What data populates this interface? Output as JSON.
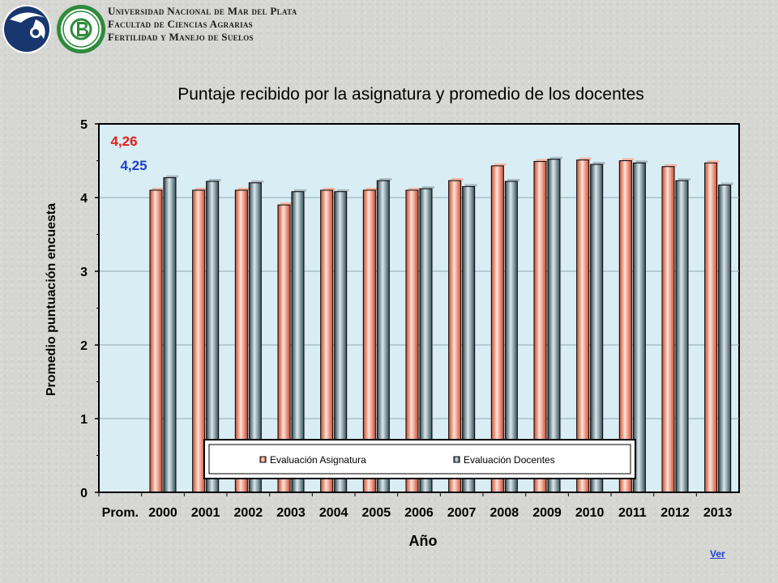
{
  "header": {
    "line1": "Universidad Nacional de Mar del Plata",
    "line2": "Facultad de Ciencias Agrarias",
    "line3": "Fertilidad y Manejo de Suelos"
  },
  "footer": {
    "link_label": "Ver"
  },
  "colors": {
    "series_asignatura": "#e8553a",
    "series_docentes": "#3d5a66",
    "plot_bg": "#d9edf5",
    "highlight_asignatura": "#e0201b",
    "highlight_docentes": "#1f3fc4"
  },
  "chart_data": {
    "type": "bar",
    "title": "Puntaje recibido por la asignatura y promedio de los docentes",
    "xlabel": "Año",
    "ylabel": "Promedio puntuación encuesta",
    "ylim": [
      0,
      5
    ],
    "yticks": [
      "0",
      "1",
      "2",
      "3",
      "4",
      "5"
    ],
    "grid": true,
    "legend_position": "bottom-center inside",
    "categories": [
      "Prom.",
      "2000",
      "2001",
      "2002",
      "2003",
      "2004",
      "2005",
      "2006",
      "2007",
      "2008",
      "2009",
      "2010",
      "2011",
      "2012",
      "2013"
    ],
    "series": [
      {
        "name": "Evaluación Asignatura",
        "values": [
          0,
          4.1,
          4.1,
          4.1,
          3.9,
          4.1,
          4.1,
          4.1,
          4.23,
          4.43,
          4.49,
          4.51,
          4.5,
          4.42,
          4.47
        ]
      },
      {
        "name": "Evaluación Docentes",
        "values": [
          0,
          4.27,
          4.22,
          4.2,
          4.08,
          4.08,
          4.23,
          4.12,
          4.15,
          4.22,
          4.52,
          4.45,
          4.47,
          4.23,
          4.17
        ]
      }
    ],
    "annotations": [
      "4,26",
      "4,25"
    ]
  }
}
